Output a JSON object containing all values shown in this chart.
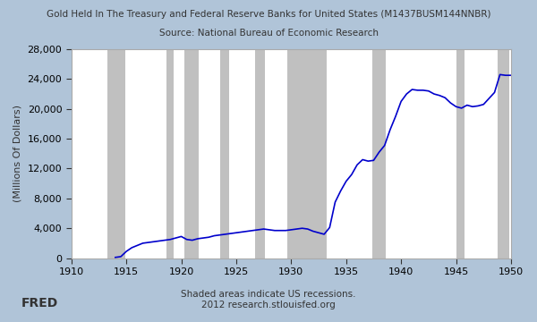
{
  "title": "Gold Held In The Treasury and Federal Reserve Banks for United States (M1437BUSM144NNBR)",
  "subtitle": "Source: National Bureau of Economic Research",
  "xlabel": "",
  "ylabel": "(Millions Of Dollars)",
  "xlim": [
    1910,
    1950
  ],
  "ylim": [
    0,
    28000
  ],
  "yticks": [
    0,
    4000,
    8000,
    12000,
    16000,
    20000,
    24000,
    28000
  ],
  "xticks": [
    1910,
    1915,
    1920,
    1925,
    1930,
    1935,
    1940,
    1945,
    1950
  ],
  "background_color": "#b0c4d8",
  "plot_bg_color": "#ffffff",
  "line_color": "#0000cc",
  "recession_color": "#c0c0c0",
  "footer_text": "Shaded areas indicate US recessions.\n2012 research.stlouisfed.org",
  "recessions": [
    [
      1913.25,
      1914.92
    ],
    [
      1918.67,
      1919.33
    ],
    [
      1920.25,
      1921.58
    ],
    [
      1923.5,
      1924.33
    ],
    [
      1926.75,
      1927.58
    ],
    [
      1929.67,
      1933.25
    ],
    [
      1937.42,
      1938.58
    ],
    [
      1945.0,
      1945.75
    ],
    [
      1948.75,
      1949.83
    ]
  ],
  "series_x": [
    1914.0,
    1914.5,
    1915.0,
    1915.5,
    1916.0,
    1916.5,
    1917.0,
    1917.5,
    1918.0,
    1918.5,
    1919.0,
    1919.5,
    1920.0,
    1920.5,
    1921.0,
    1921.5,
    1922.0,
    1922.5,
    1923.0,
    1923.5,
    1924.0,
    1924.5,
    1925.0,
    1925.5,
    1926.0,
    1926.5,
    1927.0,
    1927.5,
    1928.0,
    1928.5,
    1929.0,
    1929.5,
    1930.0,
    1930.5,
    1931.0,
    1931.5,
    1932.0,
    1932.5,
    1933.0,
    1933.5,
    1934.0,
    1934.5,
    1935.0,
    1935.5,
    1936.0,
    1936.5,
    1937.0,
    1937.5,
    1938.0,
    1938.5,
    1939.0,
    1939.5,
    1940.0,
    1940.5,
    1941.0,
    1941.5,
    1942.0,
    1942.5,
    1943.0,
    1943.5,
    1944.0,
    1944.5,
    1945.0,
    1945.5,
    1946.0,
    1946.5,
    1947.0,
    1947.5,
    1948.0,
    1948.5,
    1949.0,
    1949.5,
    1950.0
  ],
  "series_y": [
    100,
    200,
    900,
    1400,
    1700,
    2000,
    2100,
    2200,
    2300,
    2400,
    2500,
    2700,
    2900,
    2500,
    2400,
    2600,
    2700,
    2800,
    3000,
    3100,
    3200,
    3300,
    3400,
    3500,
    3600,
    3700,
    3800,
    3900,
    3800,
    3700,
    3700,
    3700,
    3800,
    3900,
    4000,
    3900,
    3600,
    3400,
    3200,
    4100,
    7500,
    9000,
    10300,
    11200,
    12500,
    13200,
    13000,
    13100,
    14200,
    15100,
    17200,
    19000,
    21000,
    22000,
    22600,
    22500,
    22500,
    22400,
    22000,
    21800,
    21500,
    20800,
    20300,
    20100,
    20500,
    20300,
    20400,
    20600,
    21400,
    22200,
    24600,
    24500,
    24500
  ]
}
